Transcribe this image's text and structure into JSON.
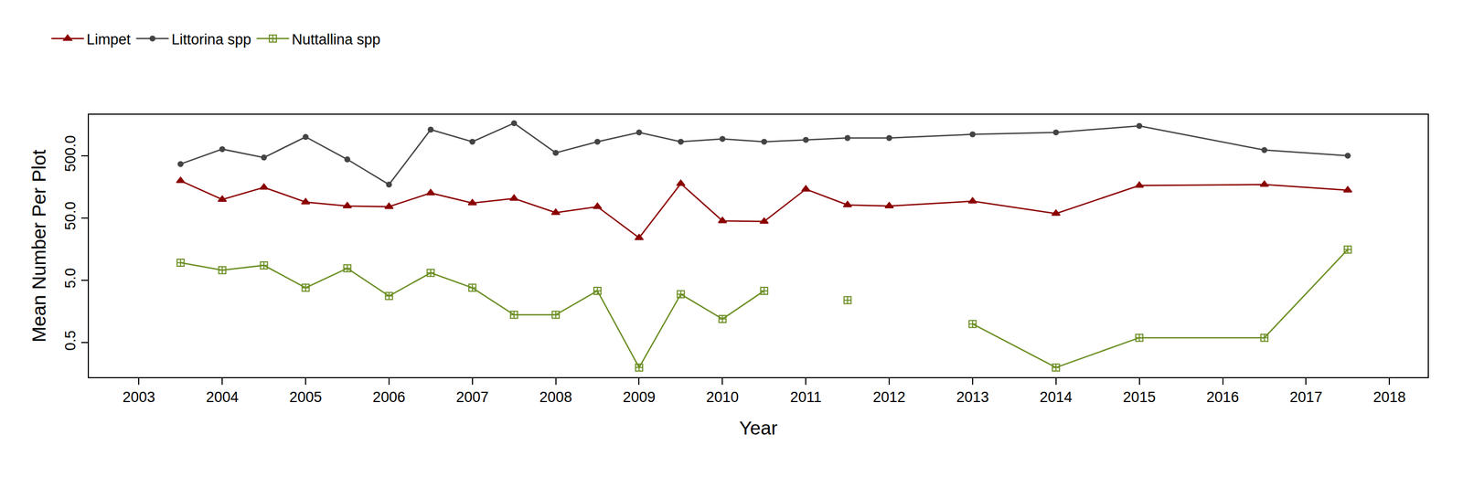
{
  "chart_data": {
    "type": "line",
    "xlabel": "Year",
    "ylabel": "Mean Number Per Plot",
    "log": "y",
    "grid": false,
    "legend": "top left",
    "x": [
      2003.5,
      2004,
      2004.5,
      2005,
      2005.5,
      2006,
      2006.5,
      2007,
      2007.5,
      2008,
      2008.5,
      2009,
      2009.5,
      2010,
      2010.5,
      2011,
      2011.5,
      2012,
      2013,
      2014,
      2015,
      2016.5,
      2017.5
    ],
    "xlim": [
      2002.4,
      2018.46
    ],
    "xticks": [
      2003,
      2004,
      2005,
      2006,
      2007,
      2008,
      2009,
      2010,
      2011,
      2012,
      2013,
      2014,
      2015,
      2016,
      2017,
      2018
    ],
    "ylim": [
      0.14,
      2270
    ],
    "yticks": [
      0.5,
      {
        "value": 5,
        "label": "5.0"
      },
      {
        "value": 50,
        "label": "50.0"
      },
      {
        "value": 500,
        "label": "500.0"
      }
    ],
    "series": [
      {
        "name": "Limpet",
        "color": "#8b0000",
        "marker": "triangle-up",
        "line_style": "solid",
        "values": [
          198,
          99,
          155,
          90,
          78,
          76,
          126,
          87,
          103,
          61,
          76,
          24,
          178,
          45,
          44,
          145,
          81,
          78,
          93,
          59,
          166,
          172,
          140
        ]
      },
      {
        "name": "Littorina spp",
        "color": "#444444",
        "marker": "circle",
        "line_style": "solid",
        "values": [
          367,
          636,
          467,
          1000,
          436,
          172,
          1310,
          837,
          1660,
          555,
          837,
          1180,
          837,
          929,
          837,
          897,
          961,
          961,
          1100,
          1180,
          1500,
          615,
          500
        ]
      },
      {
        "name": "Nuttallina spp",
        "color": "#6b8e23",
        "marker": "square-cross-open",
        "line_style": "solid",
        "values": [
          9.6,
          7.3,
          8.7,
          3.8,
          7.8,
          2.8,
          6.6,
          3.8,
          1.4,
          1.4,
          3.4,
          0.2,
          3.0,
          1.2,
          3.4,
          null,
          2.4,
          null,
          1.0,
          0.2,
          0.6,
          0.6,
          15.6
        ]
      }
    ]
  }
}
